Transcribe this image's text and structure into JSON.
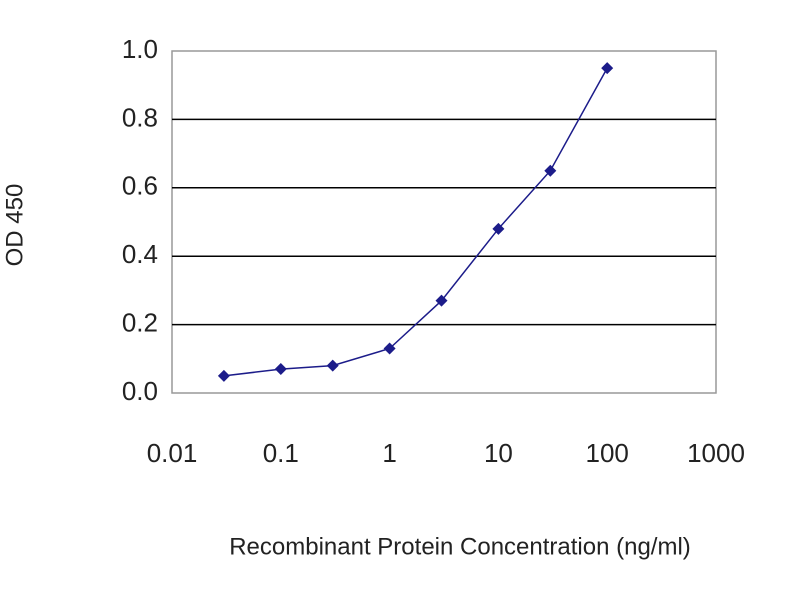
{
  "chart_data": {
    "type": "line",
    "x_label": "Recombinant Protein Concentration (ng/ml)",
    "y_label": "OD 450",
    "x": [
      0.03,
      0.1,
      0.3,
      1,
      3,
      10,
      30,
      100
    ],
    "series": [
      {
        "color": "#1c1c8a",
        "values": [
          0.05,
          0.07,
          0.08,
          0.13,
          0.27,
          0.48,
          0.65,
          0.95
        ]
      }
    ],
    "xscale": "log",
    "xlim": [
      0.01,
      1000
    ],
    "xticks": [
      0.01,
      0.1,
      1,
      10,
      100,
      1000
    ],
    "ylim": [
      0,
      1
    ],
    "yticks": [
      {
        "value": 0,
        "label": "0.0"
      },
      0.2,
      0.4,
      0.6,
      0.8,
      {
        "value": 1,
        "label": "1.0"
      }
    ],
    "grid": true
  }
}
